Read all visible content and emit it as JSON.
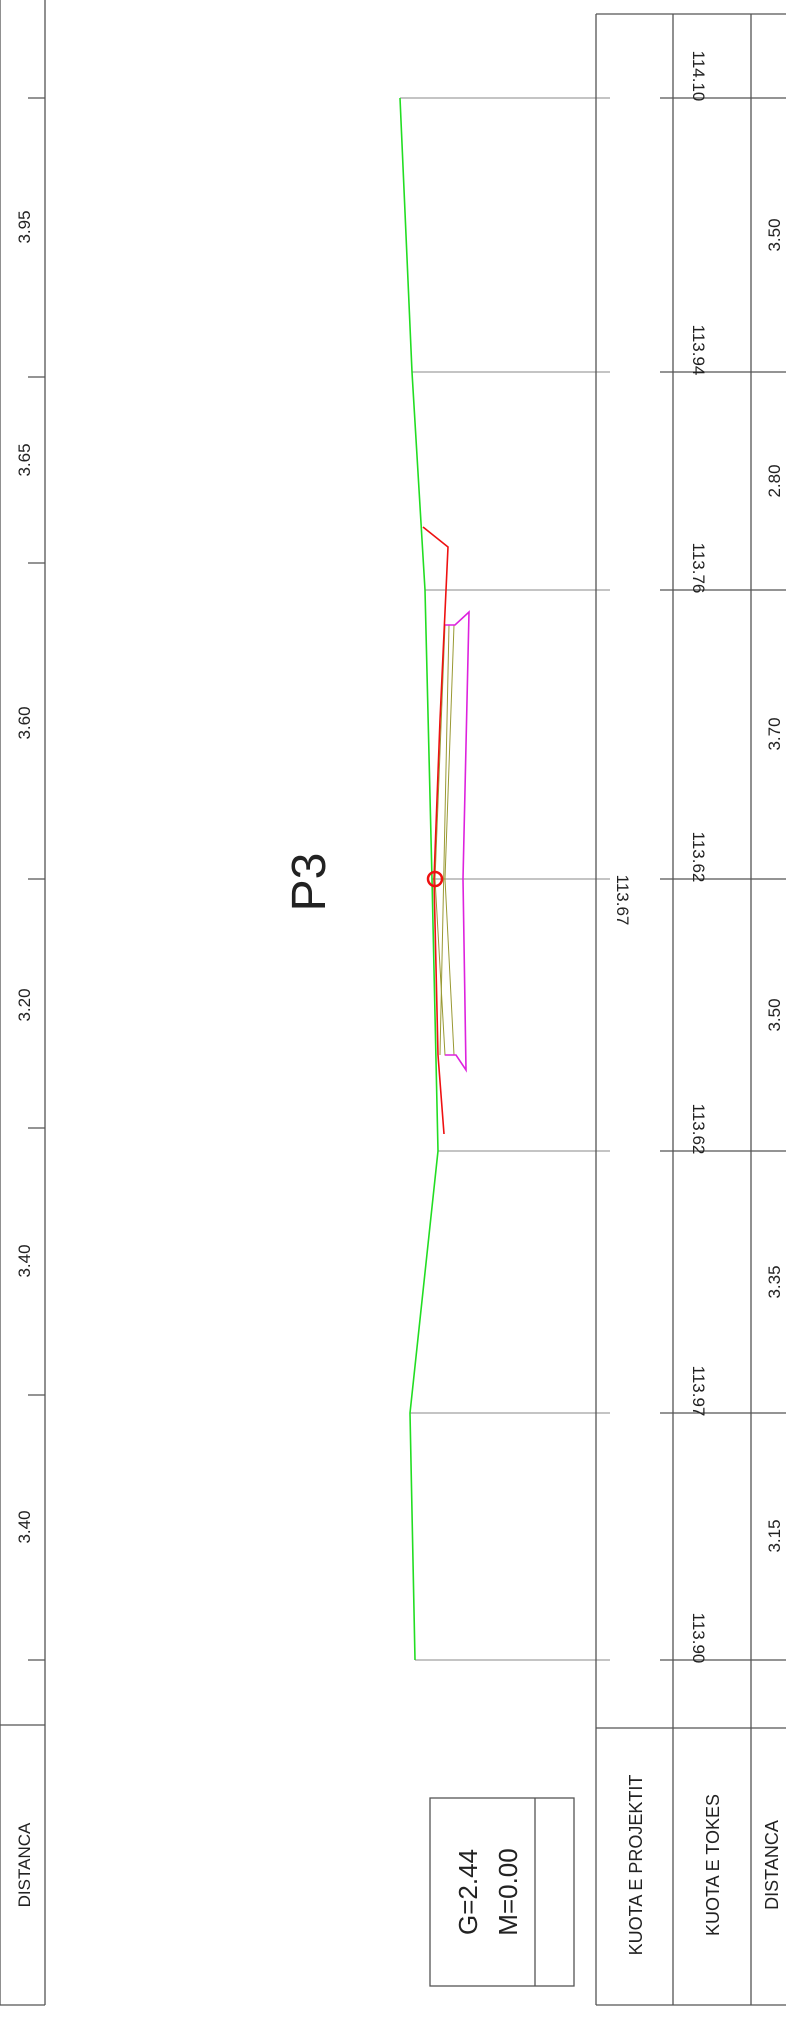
{
  "drawing": {
    "title": "P3",
    "top_strip": {
      "header": "DISTANCA",
      "segments": [
        "3.95",
        "3.65",
        "3.60",
        "3.20",
        "3.40",
        "3.40"
      ]
    },
    "table": {
      "row_labels": {
        "kuota_projektit": "KUOTA E PROJEKTIT",
        "kuota_tokes": "KUOTA E TOKES",
        "distanca": "DISTANCA"
      },
      "kuota_projektit": "113.67",
      "kuota_tokes": [
        "114.10",
        "113.94",
        "113.76",
        "113.62",
        "113.62",
        "113.97",
        "113.90"
      ],
      "distanca": [
        "3.50",
        "2.80",
        "3.70",
        "3.50",
        "3.35",
        "3.15"
      ]
    },
    "info_box": {
      "g": "G=2.44",
      "m": "M=0.00"
    },
    "colors": {
      "terrain": "#22dd22",
      "design": "#ee1111",
      "structure": "#dd22dd",
      "fill": "#999933",
      "grid": "#888888",
      "frame": "#555555"
    }
  }
}
